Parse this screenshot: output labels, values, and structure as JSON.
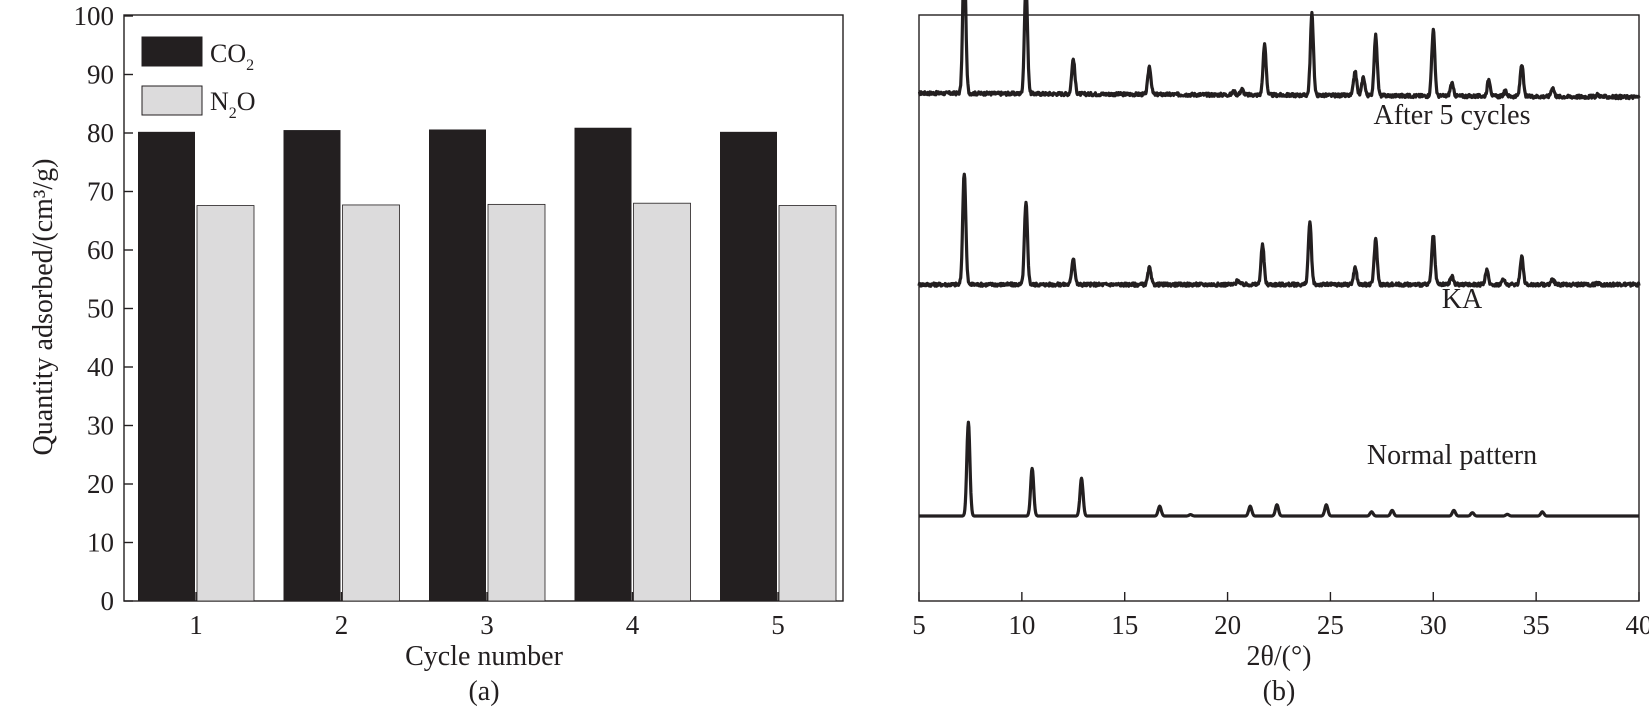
{
  "chart_data": [
    {
      "type": "bar",
      "panel_label": "(a)",
      "xlabel": "Cycle number",
      "ylabel": "Quantity adsorbed/(cm³/g)",
      "categories": [
        "1",
        "2",
        "3",
        "4",
        "5"
      ],
      "ylim": [
        0,
        100
      ],
      "yticks": [
        "0",
        "10",
        "20",
        "30",
        "40",
        "50",
        "60",
        "70",
        "80",
        "90",
        "100"
      ],
      "series": [
        {
          "name": "CO2",
          "label_main": "CO",
          "label_sub": "2",
          "label_tail": "",
          "color": "#231f20",
          "values": [
            80.2,
            80.5,
            80.6,
            80.9,
            80.2
          ]
        },
        {
          "name": "N2O",
          "label_main": "N",
          "label_sub": "2",
          "label_tail": "O",
          "color": "#dcdbdc",
          "values": [
            67.6,
            67.7,
            67.8,
            68.0,
            67.6
          ]
        }
      ],
      "legend_position": "top-left",
      "grid": false
    },
    {
      "type": "line",
      "panel_label": "(b)",
      "xlabel": "2θ/(°)",
      "xlim": [
        5,
        40
      ],
      "xticks": [
        "5",
        "10",
        "15",
        "20",
        "25",
        "30",
        "35",
        "40"
      ],
      "y_axis_labels": false,
      "grid": false,
      "series": [
        {
          "name": "After 5 cycles",
          "baseline": 0.86,
          "peaks": [
            [
              7.2,
              4.9
            ],
            [
              10.2,
              3.9
            ],
            [
              12.5,
              1.25
            ],
            [
              16.2,
              1.0
            ],
            [
              20.3,
              0.12
            ],
            [
              20.7,
              0.2
            ],
            [
              21.8,
              1.8
            ],
            [
              24.1,
              2.9
            ],
            [
              26.2,
              0.85
            ],
            [
              26.6,
              0.65
            ],
            [
              27.2,
              2.15
            ],
            [
              30.0,
              2.35
            ],
            [
              30.9,
              0.45
            ],
            [
              32.7,
              0.6
            ],
            [
              33.5,
              0.18
            ],
            [
              34.3,
              1.15
            ],
            [
              35.8,
              0.32
            ],
            [
              38.0,
              0.08
            ]
          ]
        },
        {
          "name": "KA",
          "baseline": 0.54,
          "peaks": [
            [
              7.2,
              4.0
            ],
            [
              10.2,
              2.9
            ],
            [
              12.5,
              0.95
            ],
            [
              16.2,
              0.6
            ],
            [
              20.5,
              0.15
            ],
            [
              21.7,
              1.4
            ],
            [
              24.0,
              2.2
            ],
            [
              26.2,
              0.6
            ],
            [
              27.2,
              1.6
            ],
            [
              30.0,
              1.75
            ],
            [
              30.9,
              0.3
            ],
            [
              32.6,
              0.5
            ],
            [
              33.4,
              0.18
            ],
            [
              34.3,
              1.0
            ],
            [
              35.8,
              0.2
            ],
            [
              38.0,
              0.05
            ]
          ]
        },
        {
          "name": "Normal pattern",
          "baseline": 0.145,
          "peaks": [
            [
              7.4,
              3.35
            ],
            [
              10.5,
              1.7
            ],
            [
              12.9,
              1.35
            ],
            [
              16.7,
              0.35
            ],
            [
              18.2,
              0.05
            ],
            [
              21.1,
              0.35
            ],
            [
              22.4,
              0.4
            ],
            [
              24.8,
              0.4
            ],
            [
              27.0,
              0.15
            ],
            [
              28.0,
              0.2
            ],
            [
              31.0,
              0.2
            ],
            [
              31.9,
              0.12
            ],
            [
              33.6,
              0.06
            ],
            [
              35.3,
              0.15
            ]
          ]
        }
      ]
    }
  ]
}
